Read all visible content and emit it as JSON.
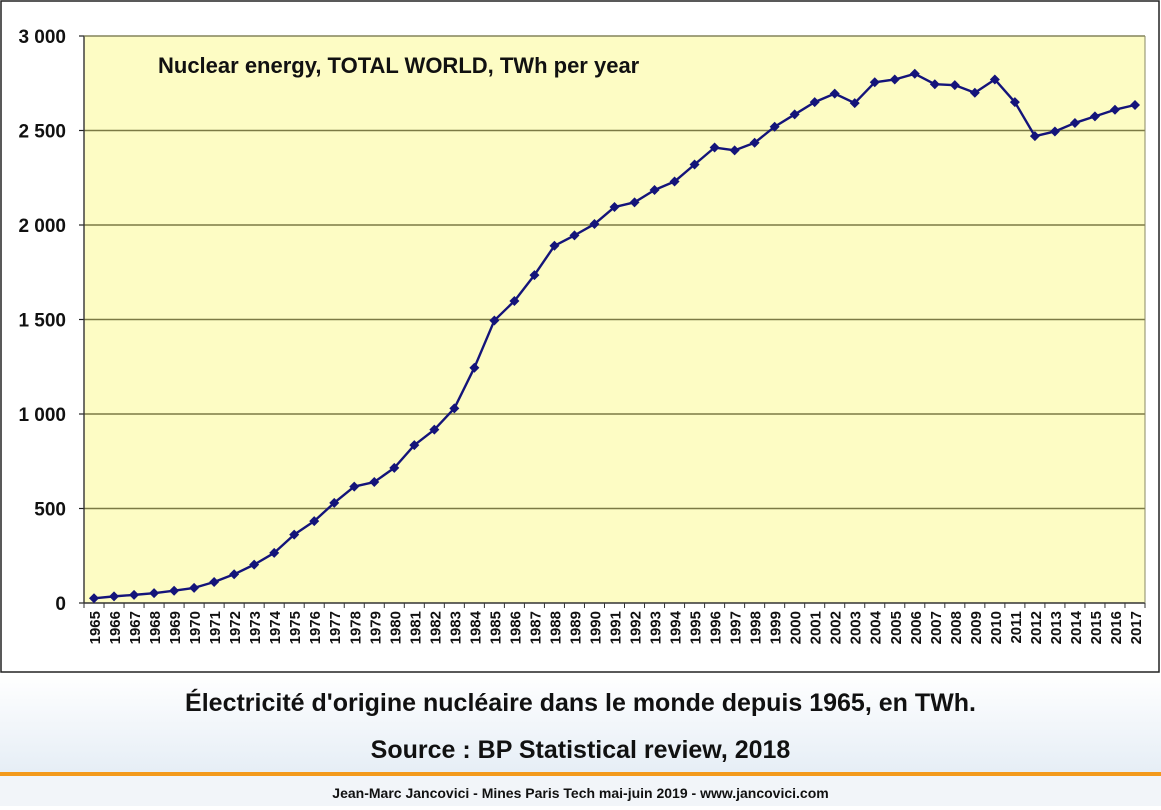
{
  "chart_data": {
    "type": "line",
    "title": "Nuclear energy, TOTAL WORLD, TWh per year",
    "xlabel": "",
    "ylabel": "",
    "ylim": [
      0,
      3000
    ],
    "y_ticks": [
      0,
      500,
      1000,
      1500,
      2000,
      2500,
      3000
    ],
    "y_tick_labels": [
      "0",
      "500",
      "1 000",
      "1 500",
      "2 000",
      "2 500",
      "3 000"
    ],
    "grid": true,
    "legend": "none",
    "categories": [
      "1965",
      "1966",
      "1967",
      "1968",
      "1969",
      "1970",
      "1971",
      "1972",
      "1973",
      "1974",
      "1975",
      "1976",
      "1977",
      "1978",
      "1979",
      "1980",
      "1981",
      "1982",
      "1983",
      "1984",
      "1985",
      "1986",
      "1987",
      "1988",
      "1989",
      "1990",
      "1991",
      "1992",
      "1993",
      "1994",
      "1995",
      "1996",
      "1997",
      "1998",
      "1999",
      "2000",
      "2001",
      "2002",
      "2003",
      "2004",
      "2005",
      "2006",
      "2007",
      "2008",
      "2009",
      "2010",
      "2011",
      "2012",
      "2013",
      "2014",
      "2015",
      "2016",
      "2017"
    ],
    "series": [
      {
        "values": [
          25,
          35,
          43,
          52,
          65,
          80,
          111,
          152,
          203,
          265,
          362,
          433,
          530,
          616,
          640,
          715,
          835,
          917,
          1030,
          1245,
          1495,
          1598,
          1735,
          1890,
          1945,
          2005,
          2095,
          2120,
          2185,
          2230,
          2320,
          2410,
          2395,
          2435,
          2520,
          2585,
          2650,
          2695,
          2645,
          2755,
          2770,
          2800,
          2745,
          2740,
          2700,
          2770,
          2650,
          2470,
          2495,
          2540,
          2575,
          2610,
          2635
        ]
      }
    ],
    "colors": {
      "plot_background": "#fdfcc4",
      "series_line": "#14147a",
      "gridline": "#7c7a45"
    }
  },
  "caption": {
    "line1": "Électricité d'origine nucléaire dans le monde depuis 1965, en TWh.",
    "line2": "Source : BP Statistical review, 2018"
  },
  "footer": {
    "text": "Jean-Marc Jancovici - Mines Paris Tech mai-juin 2019 - www.jancovici.com"
  },
  "colors": {
    "accent_divider": "#f39a1c"
  }
}
